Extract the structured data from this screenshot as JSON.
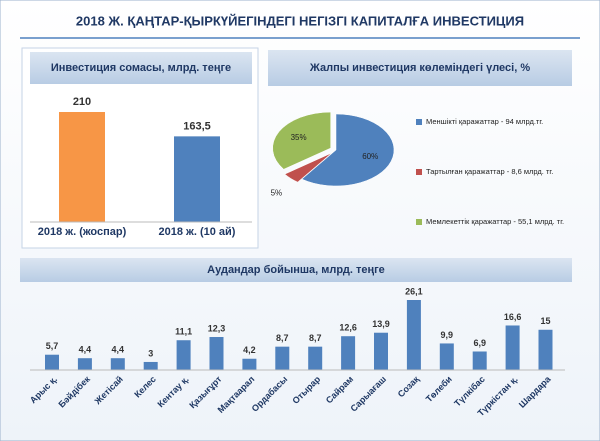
{
  "title": "2018 Ж. ҚАҢТАР-ҚЫРКҮЙЕГІНДЕГІ НЕГІЗГІ КАПИТАЛҒА ИНВЕСТИЦИЯ",
  "chart_data": [
    {
      "type": "bar",
      "title": "Инвестиция сомасы, млрд. теңге",
      "categories": [
        "2018 ж. (жоспар)",
        "2018 ж. (10 ай)"
      ],
      "values": [
        210,
        163.5
      ],
      "value_labels": [
        "210",
        "163,5"
      ],
      "colors": [
        "#f79646",
        "#4f81bd"
      ]
    },
    {
      "type": "pie",
      "title": "Жалпы инвестиция көлеміндегі үлесі, %",
      "categories": [
        "Меншікті қаражаттар - 94 млрд.тг.",
        "Тартылған қаражаттар - 8,6 млрд. тг.",
        "Мемлекеттік қаражаттар - 55,1 млрд. тг."
      ],
      "values": [
        60,
        5,
        35
      ],
      "value_labels": [
        "60%",
        "5%",
        "35%"
      ],
      "colors": [
        "#4f81bd",
        "#c0504d",
        "#9bbb59"
      ]
    },
    {
      "type": "bar",
      "title": "Аудандар бойынша, млрд. теңге",
      "categories": [
        "Арыс қ.",
        "Бәйдібек",
        "Жетісай",
        "Келес",
        "Кентау қ.",
        "Қазығұрт",
        "Мақтаарал",
        "Ордабасы",
        "Отырар",
        "Сайрам",
        "Сарыағаш",
        "Созақ",
        "Төлеби",
        "Түлкібас",
        "Түркістан қ.",
        "Шардара"
      ],
      "values": [
        5.7,
        4.4,
        4.4,
        3,
        11.1,
        12.3,
        4.2,
        8.7,
        8.7,
        12.6,
        13.9,
        26.1,
        9.9,
        6.9,
        16.6,
        15
      ],
      "value_labels": [
        "5,7",
        "4,4",
        "4,4",
        "3",
        "11,1",
        "12,3",
        "4,2",
        "8,7",
        "8,7",
        "12,6",
        "13,9",
        "26,1",
        "9,9",
        "6,9",
        "16,6",
        "15"
      ],
      "color": "#4f81bd"
    }
  ]
}
